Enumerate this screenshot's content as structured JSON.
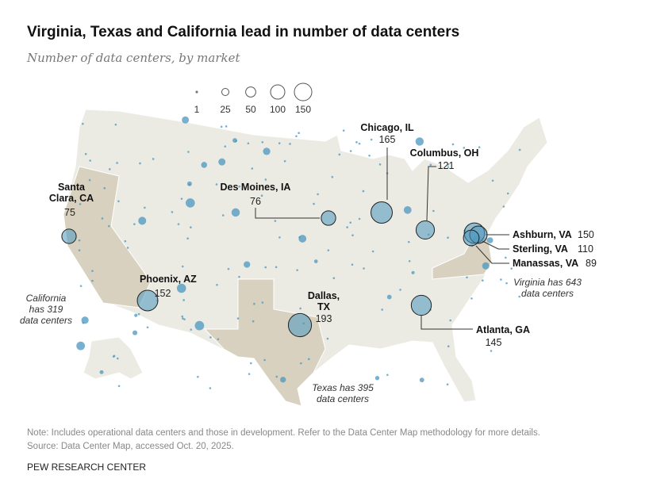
{
  "title": "Virginia, Texas and California lead in number of data centers",
  "subtitle": "Number of data centers, by market",
  "legend": {
    "sizes": [
      1,
      25,
      50,
      100,
      150
    ],
    "labels": [
      "1",
      "25",
      "50",
      "100",
      "150"
    ]
  },
  "chart_data": {
    "type": "bubble-map",
    "title": "Virginia, Texas and California lead in number of data centers",
    "subtitle": "Number of data centers, by market",
    "highlighted_states": [
      "California",
      "Texas",
      "Virginia"
    ],
    "markets": [
      {
        "name": "Santa Clara, CA",
        "value": 75
      },
      {
        "name": "Phoenix, AZ",
        "value": 152
      },
      {
        "name": "Dallas, TX",
        "value": 193
      },
      {
        "name": "Des Moines, IA",
        "value": 76
      },
      {
        "name": "Chicago, IL",
        "value": 165
      },
      {
        "name": "Columbus, OH",
        "value": 121
      },
      {
        "name": "Atlanta, GA",
        "value": 145
      },
      {
        "name": "Ashburn, VA",
        "value": 150
      },
      {
        "name": "Sterling, VA",
        "value": 110
      },
      {
        "name": "Manassas, VA",
        "value": 89
      }
    ],
    "annotations": {
      "california": [
        "California",
        "has 319",
        "data centers"
      ],
      "texas": [
        "Texas has 395",
        "data centers"
      ],
      "virginia": [
        "Virginia has 643",
        "data centers"
      ]
    },
    "colors": {
      "land": "#ecebe3",
      "highlight": "#d8d1bf",
      "bubble": "#4a97bf",
      "border": "#ffffff"
    }
  },
  "note": "Note: Includes operational data centers and those in development. Refer to the Data Center Map methodology for more details.",
  "source": "Source: Data Center Map, accessed Oct. 20, 2025.",
  "brand": "PEW RESEARCH CENTER"
}
